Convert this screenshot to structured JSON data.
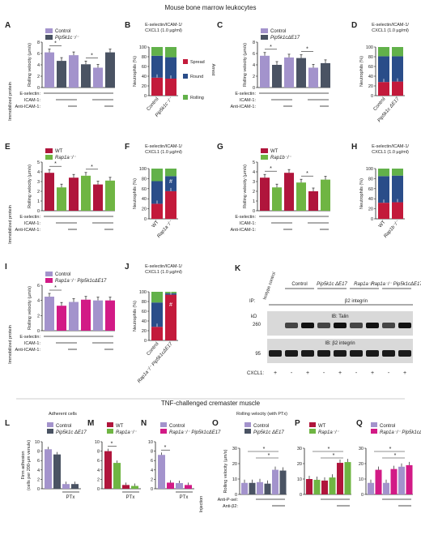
{
  "header": "Mouse bone marrow leukocytes",
  "footer_header": "TNF-challenged cremaster muscle",
  "colors": {
    "control": "#a393cc",
    "pip5k1c": "#4a5363",
    "wt": "#b0153c",
    "rap1b": "#6fb543",
    "rap1a_pip": "#d21a86",
    "spread": "#c31a3b",
    "round": "#2a4d89",
    "rolling": "#62b14a"
  },
  "panels": {
    "A": {
      "letter": "A",
      "legend": [
        "Control",
        "Pip5k1c⁻/⁻"
      ],
      "ylabel": "Rolling velocity (µm/s)",
      "ymax": 8,
      "ticks": [
        "8",
        "6",
        "4",
        "2",
        "0"
      ],
      "values": [
        6.2,
        4.7,
        5.7,
        4.1,
        3.5,
        6.2
      ],
      "sig": [
        "*",
        "*"
      ],
      "treat_labels": [
        "E-selectin:",
        "ICAM-1:",
        "Anti-ICAM-1:"
      ],
      "side_label": "Immobilized protein"
    },
    "B": {
      "letter": "B",
      "condition": [
        "E-selectin/ICAM-1/",
        "CXCL1 (1.0 µg/ml)"
      ],
      "ylabel": "Neutrophils (%)",
      "ticks": [
        "100",
        "80",
        "60",
        "40",
        "20",
        "0"
      ],
      "xlabels": [
        "Control",
        "Pip5k1c⁻/⁻"
      ],
      "legend": [
        "Spread",
        "Round",
        "Rolling"
      ],
      "arrest_label": "Arrest",
      "bars": [
        [
          37,
          45,
          18
        ],
        [
          35,
          44,
          21
        ]
      ]
    },
    "C": {
      "letter": "C",
      "legend": [
        "Control",
        "Pip5k1cΔE17"
      ],
      "ylabel": "Rolling velocity (µm/s)",
      "ymax": 8,
      "ticks": [
        "8",
        "6",
        "4",
        "2",
        "0"
      ],
      "values": [
        5.6,
        4.0,
        5.3,
        5.2,
        3.5,
        4.3
      ],
      "sig": [
        "*",
        "*"
      ],
      "treat_labels": [
        "E-selectin:",
        "ICAM-1:",
        "Anti-ICAM-1:"
      ]
    },
    "D": {
      "letter": "D",
      "condition": [
        "E-selectin/ICAM-1/",
        "CXCL1 (1.0 µg/ml)"
      ],
      "ylabel": "Neutrophils (%)",
      "ticks": [
        "100",
        "80",
        "60",
        "40",
        "20",
        "0"
      ],
      "xlabels": [
        "Control",
        "Pip5k1c ΔE17"
      ],
      "bars": [
        [
          28,
          53,
          19
        ],
        [
          29,
          52,
          19
        ]
      ]
    },
    "E": {
      "letter": "E",
      "legend": [
        "WT",
        "Rap1a⁻/⁻"
      ],
      "ylabel": "Rolling velocity (µm/s)",
      "ymax": 5,
      "ticks": [
        "5",
        "4",
        "3",
        "2",
        "1",
        "0"
      ],
      "values": [
        3.9,
        2.4,
        3.4,
        3.6,
        2.7,
        3.1
      ],
      "sig": [
        "*",
        "*"
      ],
      "treat_labels": [
        "E-selectin:",
        "ICAM-1:",
        "Anti-ICAM-1:"
      ],
      "side_label": "Immobilized protein"
    },
    "F": {
      "letter": "F",
      "condition": [
        "E-selectin/ICAM-1/",
        "CXCL1 (1.0 µg/ml)"
      ],
      "ylabel": "Neutrophils (%)",
      "ticks": [
        "100",
        "80",
        "60",
        "40",
        "20",
        "0"
      ],
      "xlabels": [
        "WT",
        "Rap1a⁻/⁻"
      ],
      "sig": "#",
      "bars": [
        [
          30,
          45,
          25
        ],
        [
          55,
          30,
          15
        ]
      ]
    },
    "G": {
      "letter": "G",
      "legend": [
        "WT",
        "Rap1b⁻/⁻"
      ],
      "ylabel": "Rolling velocity (µm/s)",
      "ymax": 5,
      "ticks": [
        "5",
        "4",
        "3",
        "2",
        "1",
        "0"
      ],
      "values": [
        3.4,
        2.4,
        3.9,
        2.9,
        2.0,
        3.2
      ],
      "sig": [
        "*",
        "*"
      ],
      "treat_labels": [
        "E-selectin:",
        "ICAM-1:",
        "Anti-ICAM-1:"
      ]
    },
    "H": {
      "letter": "H",
      "condition": [
        "E-selectin/ICAM-1/",
        "CXCL1 (1.0 µg/ml)"
      ],
      "ylabel": "Neutrophils (%)",
      "ticks": [
        "100",
        "80",
        "60",
        "40",
        "20",
        "0"
      ],
      "xlabels": [
        "WT",
        "Rap1b⁻/⁻"
      ],
      "bars": [
        [
          32,
          53,
          15
        ],
        [
          33,
          53,
          14
        ]
      ]
    },
    "I": {
      "letter": "I",
      "legend": [
        "Control",
        "Rap1a⁻/⁻ Pip5k1cΔE17"
      ],
      "ylabel": "Rolling velocity (µm/s)",
      "ymax": 6,
      "ticks": [
        "6",
        "4",
        "2",
        "0"
      ],
      "values": [
        4.5,
        3.3,
        3.8,
        4.1,
        4.0,
        4.0
      ],
      "sig": [
        "*"
      ],
      "treat_labels": [
        "E-selectin:",
        "ICAM-1:",
        "Anti-ICAM-1:"
      ],
      "side_label": "Immobilized protein"
    },
    "J": {
      "letter": "J",
      "condition": [
        "E-selectin/ICAM-1/",
        "CXCL1 (1.0 µg/ml)"
      ],
      "ylabel": "Neutrophils (%)",
      "ticks": [
        "100",
        "80",
        "60",
        "40",
        "20",
        "0"
      ],
      "xlabels": [
        "Control",
        "Rap1a⁻/⁻ Pip5k1cΔE17"
      ],
      "sig": "#",
      "bars": [
        [
          28,
          50,
          22
        ],
        [
          94,
          3,
          3
        ]
      ]
    },
    "K": {
      "letter": "K",
      "groups": [
        "Control",
        "Pip5k1c ΔE17",
        "Rap1a⁻/⁻",
        "Rap1a⁻/⁻ Pip5k1cΔE17"
      ],
      "isotype": "Isotype control",
      "ip": "IP:",
      "ip_target": "β2 integrin",
      "ib1": "IB: Talin",
      "ib2": "IB: β2 integrin",
      "kd": "kD",
      "mw1": "260",
      "mw2": "95",
      "cxcl1_label": "CXCL1:",
      "cxcl1": [
        "+",
        "-",
        "+",
        "-",
        "+",
        "-",
        "+",
        "-",
        "+"
      ]
    },
    "L": {
      "letter": "L",
      "legend": [
        "Control",
        "Pip5k1c ΔE17"
      ],
      "ylabel": [
        "Firm adhesion",
        "(cells per 200-µm venule)"
      ],
      "ymax": 10,
      "ticks": [
        "10",
        "8",
        "6",
        "4",
        "2",
        "0"
      ],
      "values": [
        8.4,
        7.3,
        1.0,
        1.0
      ],
      "ptx": "PTx"
    },
    "M": {
      "letter": "M",
      "legend": [
        "WT",
        "Rap1a⁻/⁻"
      ],
      "ymax": 10,
      "ticks": [
        "10",
        "8",
        "6",
        "4",
        "2",
        "0"
      ],
      "values": [
        8.0,
        5.5,
        0.8,
        0.6
      ],
      "ptx": "PTx",
      "sig": [
        "*"
      ]
    },
    "N": {
      "letter": "N",
      "legend": [
        "Control",
        "Rap1a⁻/⁻ Pip5k1cΔE17"
      ],
      "ymax": 10,
      "ticks": [
        "10",
        "8",
        "6",
        "4",
        "2",
        "0"
      ],
      "values": [
        7.2,
        1.3,
        1.2,
        0.8
      ],
      "ptx": "PTx",
      "sig": [
        "*"
      ]
    },
    "O": {
      "letter": "O",
      "legend": [
        "Control",
        "Pip5k1c ΔE17"
      ],
      "ylabel": "Rolling velocity (µm/s)",
      "ymax": 30,
      "ticks": [
        "30",
        "20",
        "10",
        "0"
      ],
      "values": [
        7.5,
        7.5,
        8.0,
        7.0,
        16.0,
        15.5
      ],
      "sig": [
        "*",
        "*"
      ],
      "injection": "Injection",
      "inj_labels": [
        "Anti-P-sel:",
        "Anti-β2:"
      ]
    },
    "P": {
      "letter": "P",
      "legend": [
        "WT",
        "Rap1a⁻/⁻"
      ],
      "ymax": 30,
      "ticks": [
        "30",
        "20",
        "10",
        "0"
      ],
      "values": [
        10.0,
        9.5,
        9.0,
        11.0,
        20.5,
        21.0
      ],
      "sig": [
        "*",
        "*"
      ]
    },
    "Q": {
      "letter": "Q",
      "legend": [
        "Control",
        "Rap1a⁻/⁻ Pip5k1cΔE17"
      ],
      "ymax": 30,
      "ticks": [
        "30",
        "20",
        "10",
        "0"
      ],
      "values": [
        7.5,
        16.0,
        7.5,
        16.5,
        18.0,
        19.0
      ],
      "sig": [
        "*",
        "*"
      ]
    }
  },
  "adherent_title": "Adherent cells",
  "rolling_title": "Rolling velocity (with PTx)"
}
